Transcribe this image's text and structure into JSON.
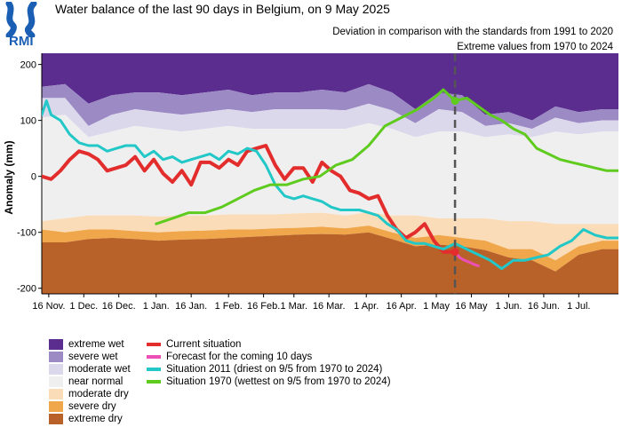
{
  "logo": {
    "text": "RMI"
  },
  "title": "Water balance of the last 90 days in Belgium, on 9 May 2025",
  "subtitles": [
    "Deviation in comparison with the standards from 1991 to 2020",
    "Extreme values from 1970 to 2024"
  ],
  "legend": {
    "bands": [
      {
        "label": "extreme wet",
        "color": "#5b2d8e"
      },
      {
        "label": "severe wet",
        "color": "#9b8ac4"
      },
      {
        "label": "moderate wet",
        "color": "#dcd8ec"
      },
      {
        "label": "near normal",
        "color": "#efefef"
      },
      {
        "label": "moderate dry",
        "color": "#fbdcb8"
      },
      {
        "label": "severe dry",
        "color": "#f0a64a"
      },
      {
        "label": "extreme dry",
        "color": "#b8622a"
      }
    ],
    "lines": [
      {
        "label": "Current situation",
        "color": "#e32c2c"
      },
      {
        "label": "Forecast for the coming 10 days",
        "color": "#ec4fb6"
      },
      {
        "label": "Situation 2011 (driest on 9/5 from 1970 to 2024)",
        "color": "#22c7c7"
      },
      {
        "label": "Situation 1970 (wettest on 9/5 from 1970 to 2024)",
        "color": "#5ecb1e"
      }
    ]
  },
  "chart_data": {
    "type": "line",
    "title": "Water balance of the last 90 days in Belgium, on 9 May 2025",
    "ylabel": "Anomaly (mm)",
    "xlabel": "",
    "ylim": [
      -210,
      220
    ],
    "xlim": [
      "2024-11-13",
      "2025-07-18"
    ],
    "yticks": [
      200,
      100,
      0,
      -100,
      -200
    ],
    "xtick_labels": [
      {
        "date": "2024-11-16",
        "label": "16 Nov."
      },
      {
        "date": "2024-12-01",
        "label": "1 Dec."
      },
      {
        "date": "2024-12-16",
        "label": "16 Dec."
      },
      {
        "date": "2025-01-01",
        "label": "1 Jan."
      },
      {
        "date": "2025-01-16",
        "label": "16 Jan."
      },
      {
        "date": "2025-02-01",
        "label": "1 Feb."
      },
      {
        "date": "2025-02-16",
        "label": "16 Feb."
      },
      {
        "date": "2025-03-01",
        "label": "1 Mar."
      },
      {
        "date": "2025-03-16",
        "label": "16 Mar."
      },
      {
        "date": "2025-04-01",
        "label": "1 Apr."
      },
      {
        "date": "2025-04-16",
        "label": "16 Apr."
      },
      {
        "date": "2025-05-01",
        "label": "1 May"
      },
      {
        "date": "2025-05-16",
        "label": "16 May"
      },
      {
        "date": "2025-06-01",
        "label": "1 Jun."
      },
      {
        "date": "2025-06-16",
        "label": "16 Jun."
      },
      {
        "date": "2025-07-01",
        "label": "1 Jul."
      }
    ],
    "reference_date": "2025-05-09",
    "band_dates": [
      "2024-11-13",
      "2024-11-23",
      "2024-12-03",
      "2024-12-13",
      "2024-12-23",
      "2025-01-02",
      "2025-01-12",
      "2025-01-22",
      "2025-02-01",
      "2025-02-11",
      "2025-02-21",
      "2025-03-03",
      "2025-03-13",
      "2025-03-23",
      "2025-04-02",
      "2025-04-12",
      "2025-04-22",
      "2025-05-02",
      "2025-05-12",
      "2025-05-22",
      "2025-06-01",
      "2025-06-11",
      "2025-06-21",
      "2025-07-01",
      "2025-07-11",
      "2025-07-18"
    ],
    "bands": [
      {
        "name": "extreme wet",
        "upper": [
          220,
          220,
          220,
          220,
          220,
          220,
          220,
          220,
          220,
          220,
          220,
          220,
          220,
          220,
          220,
          220,
          220,
          220,
          220,
          220,
          220,
          220,
          220,
          220,
          220,
          220
        ],
        "lower": [
          160,
          165,
          130,
          145,
          150,
          150,
          145,
          150,
          155,
          145,
          150,
          150,
          155,
          150,
          165,
          150,
          120,
          150,
          145,
          110,
          115,
          100,
          125,
          115,
          120,
          120
        ]
      },
      {
        "name": "severe wet",
        "upper": [
          160,
          165,
          130,
          145,
          150,
          150,
          145,
          150,
          155,
          145,
          150,
          150,
          155,
          150,
          165,
          150,
          120,
          150,
          145,
          110,
          115,
          100,
          125,
          115,
          120,
          120
        ],
        "lower": [
          140,
          140,
          90,
          110,
          120,
          115,
          110,
          115,
          120,
          115,
          120,
          120,
          120,
          118,
          130,
          118,
          95,
          120,
          115,
          90,
          95,
          85,
          105,
          95,
          100,
          100
        ]
      },
      {
        "name": "moderate wet",
        "upper": [
          140,
          140,
          90,
          110,
          120,
          115,
          110,
          115,
          120,
          115,
          120,
          120,
          120,
          118,
          130,
          118,
          95,
          120,
          115,
          90,
          95,
          85,
          105,
          95,
          100,
          100
        ],
        "lower": [
          105,
          110,
          70,
          80,
          90,
          85,
          80,
          85,
          90,
          85,
          85,
          85,
          85,
          85,
          95,
          85,
          70,
          80,
          80,
          70,
          75,
          70,
          80,
          75,
          80,
          80
        ]
      },
      {
        "name": "near normal",
        "upper": [
          105,
          110,
          70,
          80,
          90,
          85,
          80,
          85,
          90,
          85,
          85,
          85,
          85,
          85,
          95,
          85,
          70,
          80,
          80,
          70,
          75,
          70,
          80,
          75,
          80,
          80
        ],
        "lower": [
          -80,
          -75,
          -70,
          -70,
          -70,
          -72,
          -70,
          -70,
          -68,
          -68,
          -68,
          -66,
          -65,
          -70,
          -64,
          -70,
          -70,
          -75,
          -75,
          -75,
          -80,
          -80,
          -85,
          -85,
          -85,
          -85
        ]
      },
      {
        "name": "moderate dry",
        "upper": [
          -80,
          -75,
          -70,
          -70,
          -70,
          -72,
          -70,
          -70,
          -68,
          -68,
          -68,
          -66,
          -65,
          -70,
          -64,
          -70,
          -70,
          -75,
          -75,
          -75,
          -80,
          -80,
          -85,
          -85,
          -85,
          -85
        ],
        "lower": [
          -95,
          -100,
          -95,
          -95,
          -98,
          -100,
          -98,
          -97,
          -95,
          -95,
          -93,
          -92,
          -90,
          -93,
          -88,
          -100,
          -110,
          -105,
          -110,
          -115,
          -130,
          -130,
          -150,
          -125,
          -115,
          -115
        ]
      },
      {
        "name": "severe dry",
        "upper": [
          -95,
          -100,
          -95,
          -95,
          -98,
          -100,
          -98,
          -97,
          -95,
          -95,
          -93,
          -92,
          -90,
          -93,
          -88,
          -100,
          -110,
          -105,
          -110,
          -115,
          -130,
          -130,
          -150,
          -125,
          -115,
          -115
        ],
        "lower": [
          -118,
          -118,
          -112,
          -110,
          -112,
          -115,
          -113,
          -112,
          -110,
          -108,
          -106,
          -104,
          -103,
          -104,
          -100,
          -112,
          -125,
          -122,
          -125,
          -132,
          -145,
          -150,
          -170,
          -140,
          -130,
          -130
        ]
      },
      {
        "name": "extreme dry",
        "upper": [
          -118,
          -118,
          -112,
          -110,
          -112,
          -115,
          -113,
          -112,
          -110,
          -108,
          -106,
          -104,
          -103,
          -104,
          -100,
          -112,
          -125,
          -122,
          -125,
          -132,
          -145,
          -150,
          -170,
          -140,
          -130,
          -130
        ],
        "lower": [
          -210,
          -210,
          -210,
          -210,
          -210,
          -210,
          -210,
          -210,
          -210,
          -210,
          -210,
          -210,
          -210,
          -210,
          -210,
          -210,
          -210,
          -210,
          -210,
          -210,
          -210,
          -210,
          -210,
          -210,
          -210,
          -210
        ]
      }
    ],
    "series": [
      {
        "name": "Current situation",
        "color": "#e32c2c",
        "x": [
          "2024-11-13",
          "2024-11-17",
          "2024-11-21",
          "2024-11-25",
          "2024-11-29",
          "2024-12-03",
          "2024-12-07",
          "2024-12-11",
          "2024-12-15",
          "2024-12-19",
          "2024-12-23",
          "2024-12-27",
          "2024-12-31",
          "2025-01-04",
          "2025-01-08",
          "2025-01-12",
          "2025-01-16",
          "2025-01-20",
          "2025-01-24",
          "2025-01-28",
          "2025-02-01",
          "2025-02-05",
          "2025-02-09",
          "2025-02-13",
          "2025-02-17",
          "2025-02-21",
          "2025-02-25",
          "2025-03-01",
          "2025-03-05",
          "2025-03-09",
          "2025-03-13",
          "2025-03-17",
          "2025-03-21",
          "2025-03-25",
          "2025-03-29",
          "2025-04-02",
          "2025-04-06",
          "2025-04-10",
          "2025-04-14",
          "2025-04-18",
          "2025-04-22",
          "2025-04-26",
          "2025-04-30",
          "2025-05-04",
          "2025-05-09"
        ],
        "y": [
          0,
          -5,
          10,
          30,
          45,
          40,
          30,
          10,
          15,
          20,
          35,
          10,
          30,
          5,
          -10,
          10,
          -15,
          25,
          25,
          15,
          30,
          20,
          45,
          50,
          55,
          20,
          -5,
          15,
          15,
          -10,
          25,
          10,
          0,
          -25,
          -30,
          -40,
          -35,
          -70,
          -95,
          -110,
          -100,
          -85,
          -115,
          -135,
          -135
        ]
      },
      {
        "name": "Forecast for the coming 10 days",
        "color": "#ec4fb6",
        "x": [
          "2025-05-09",
          "2025-05-11",
          "2025-05-13",
          "2025-05-15",
          "2025-05-17",
          "2025-05-19"
        ],
        "y": [
          -135,
          -145,
          -150,
          -153,
          -157,
          -160
        ]
      },
      {
        "name": "Situation 2011 (driest on 9/5 from 1970 to 2024)",
        "color": "#22c7c7",
        "x": [
          "2024-11-13",
          "2024-11-15",
          "2024-11-17",
          "2024-11-21",
          "2024-11-25",
          "2024-11-29",
          "2024-12-03",
          "2024-12-07",
          "2024-12-11",
          "2024-12-15",
          "2024-12-19",
          "2024-12-23",
          "2024-12-27",
          "2024-12-31",
          "2025-01-04",
          "2025-01-08",
          "2025-01-12",
          "2025-01-16",
          "2025-01-20",
          "2025-01-24",
          "2025-01-28",
          "2025-02-01",
          "2025-02-05",
          "2025-02-09",
          "2025-02-13",
          "2025-02-17",
          "2025-02-21",
          "2025-02-25",
          "2025-03-01",
          "2025-03-05",
          "2025-03-09",
          "2025-03-13",
          "2025-03-17",
          "2025-03-21",
          "2025-03-25",
          "2025-03-29",
          "2025-04-02",
          "2025-04-06",
          "2025-04-10",
          "2025-04-14",
          "2025-04-18",
          "2025-04-22",
          "2025-04-26",
          "2025-04-30",
          "2025-05-04",
          "2025-05-09",
          "2025-05-14",
          "2025-05-19",
          "2025-05-24",
          "2025-05-29",
          "2025-06-03",
          "2025-06-08",
          "2025-06-13",
          "2025-06-18",
          "2025-06-23",
          "2025-06-28",
          "2025-07-03",
          "2025-07-08",
          "2025-07-13",
          "2025-07-18"
        ],
        "y": [
          110,
          135,
          110,
          100,
          75,
          60,
          55,
          55,
          45,
          50,
          55,
          55,
          35,
          45,
          30,
          35,
          25,
          30,
          35,
          40,
          30,
          45,
          40,
          50,
          45,
          20,
          -15,
          -35,
          -40,
          -35,
          -40,
          -45,
          -55,
          -60,
          -60,
          -60,
          -65,
          -70,
          -85,
          -95,
          -115,
          -120,
          -120,
          -125,
          -130,
          -120,
          -130,
          -140,
          -150,
          -165,
          -150,
          -150,
          -145,
          -140,
          -125,
          -115,
          -95,
          -105,
          -110,
          -110
        ]
      },
      {
        "name": "Situation 1970 (wettest on 9/5 from 1970 to 2024)",
        "color": "#5ecb1e",
        "x": [
          "2025-01-01",
          "2025-01-08",
          "2025-01-15",
          "2025-01-22",
          "2025-01-29",
          "2025-02-05",
          "2025-02-12",
          "2025-02-19",
          "2025-02-26",
          "2025-03-05",
          "2025-03-12",
          "2025-03-19",
          "2025-03-26",
          "2025-04-02",
          "2025-04-09",
          "2025-04-16",
          "2025-04-23",
          "2025-04-30",
          "2025-05-04",
          "2025-05-09",
          "2025-05-14",
          "2025-05-19",
          "2025-05-24",
          "2025-05-29",
          "2025-06-03",
          "2025-06-08",
          "2025-06-13",
          "2025-06-18",
          "2025-06-23",
          "2025-06-28",
          "2025-07-03",
          "2025-07-08",
          "2025-07-13",
          "2025-07-18"
        ],
        "y": [
          -85,
          -75,
          -65,
          -65,
          -55,
          -40,
          -25,
          -15,
          -15,
          -5,
          0,
          20,
          30,
          55,
          90,
          105,
          120,
          140,
          155,
          135,
          140,
          125,
          110,
          100,
          85,
          75,
          50,
          40,
          30,
          25,
          20,
          15,
          10,
          10
        ]
      }
    ],
    "markers": [
      {
        "series": "Current situation",
        "x": "2025-05-09",
        "y": -135,
        "color": "#e32c2c"
      },
      {
        "series": "Situation 1970 (wettest on 9/5 from 1970 to 2024)",
        "x": "2025-05-09",
        "y": 135,
        "color": "#5ecb1e"
      }
    ],
    "grid": false,
    "legend_position": "bottom-left"
  }
}
